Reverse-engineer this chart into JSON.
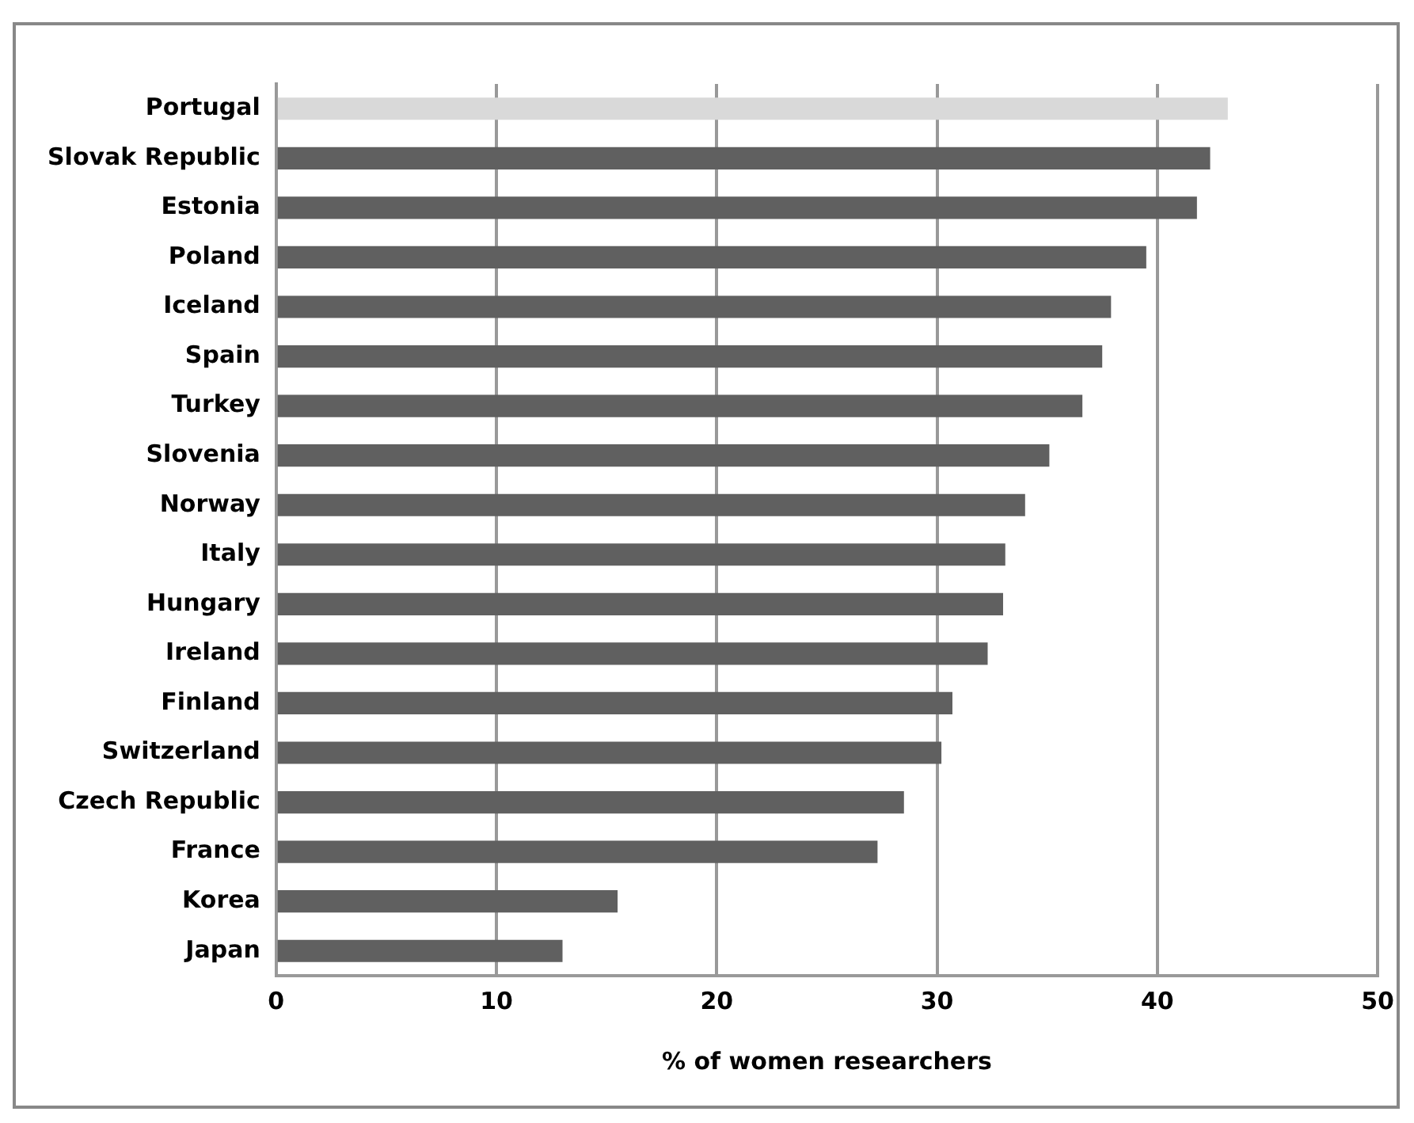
{
  "chart_data": {
    "type": "bar",
    "orientation": "horizontal",
    "xlabel": "% of women researchers",
    "categories": [
      "Portugal",
      "Slovak Republic",
      "Estonia",
      "Poland",
      "Iceland",
      "Spain",
      "Turkey",
      "Slovenia",
      "Norway",
      "Italy",
      "Hungary",
      "Ireland",
      "Finland",
      "Switzerland",
      "Czech Republic",
      "France",
      "Korea",
      "Japan"
    ],
    "values": [
      43.2,
      42.4,
      41.8,
      39.5,
      37.9,
      37.5,
      36.6,
      35.1,
      34.0,
      33.1,
      33.0,
      32.3,
      30.7,
      30.2,
      28.5,
      27.3,
      15.5,
      13.0
    ],
    "colors": [
      "#d9d9d9",
      "#606060",
      "#606060",
      "#606060",
      "#606060",
      "#606060",
      "#606060",
      "#606060",
      "#606060",
      "#606060",
      "#606060",
      "#606060",
      "#606060",
      "#606060",
      "#606060",
      "#606060",
      "#606060",
      "#606060"
    ],
    "xlim": [
      0,
      50
    ],
    "xticks": [
      0,
      10,
      20,
      30,
      40,
      50
    ],
    "grid": "x",
    "legend": false
  }
}
